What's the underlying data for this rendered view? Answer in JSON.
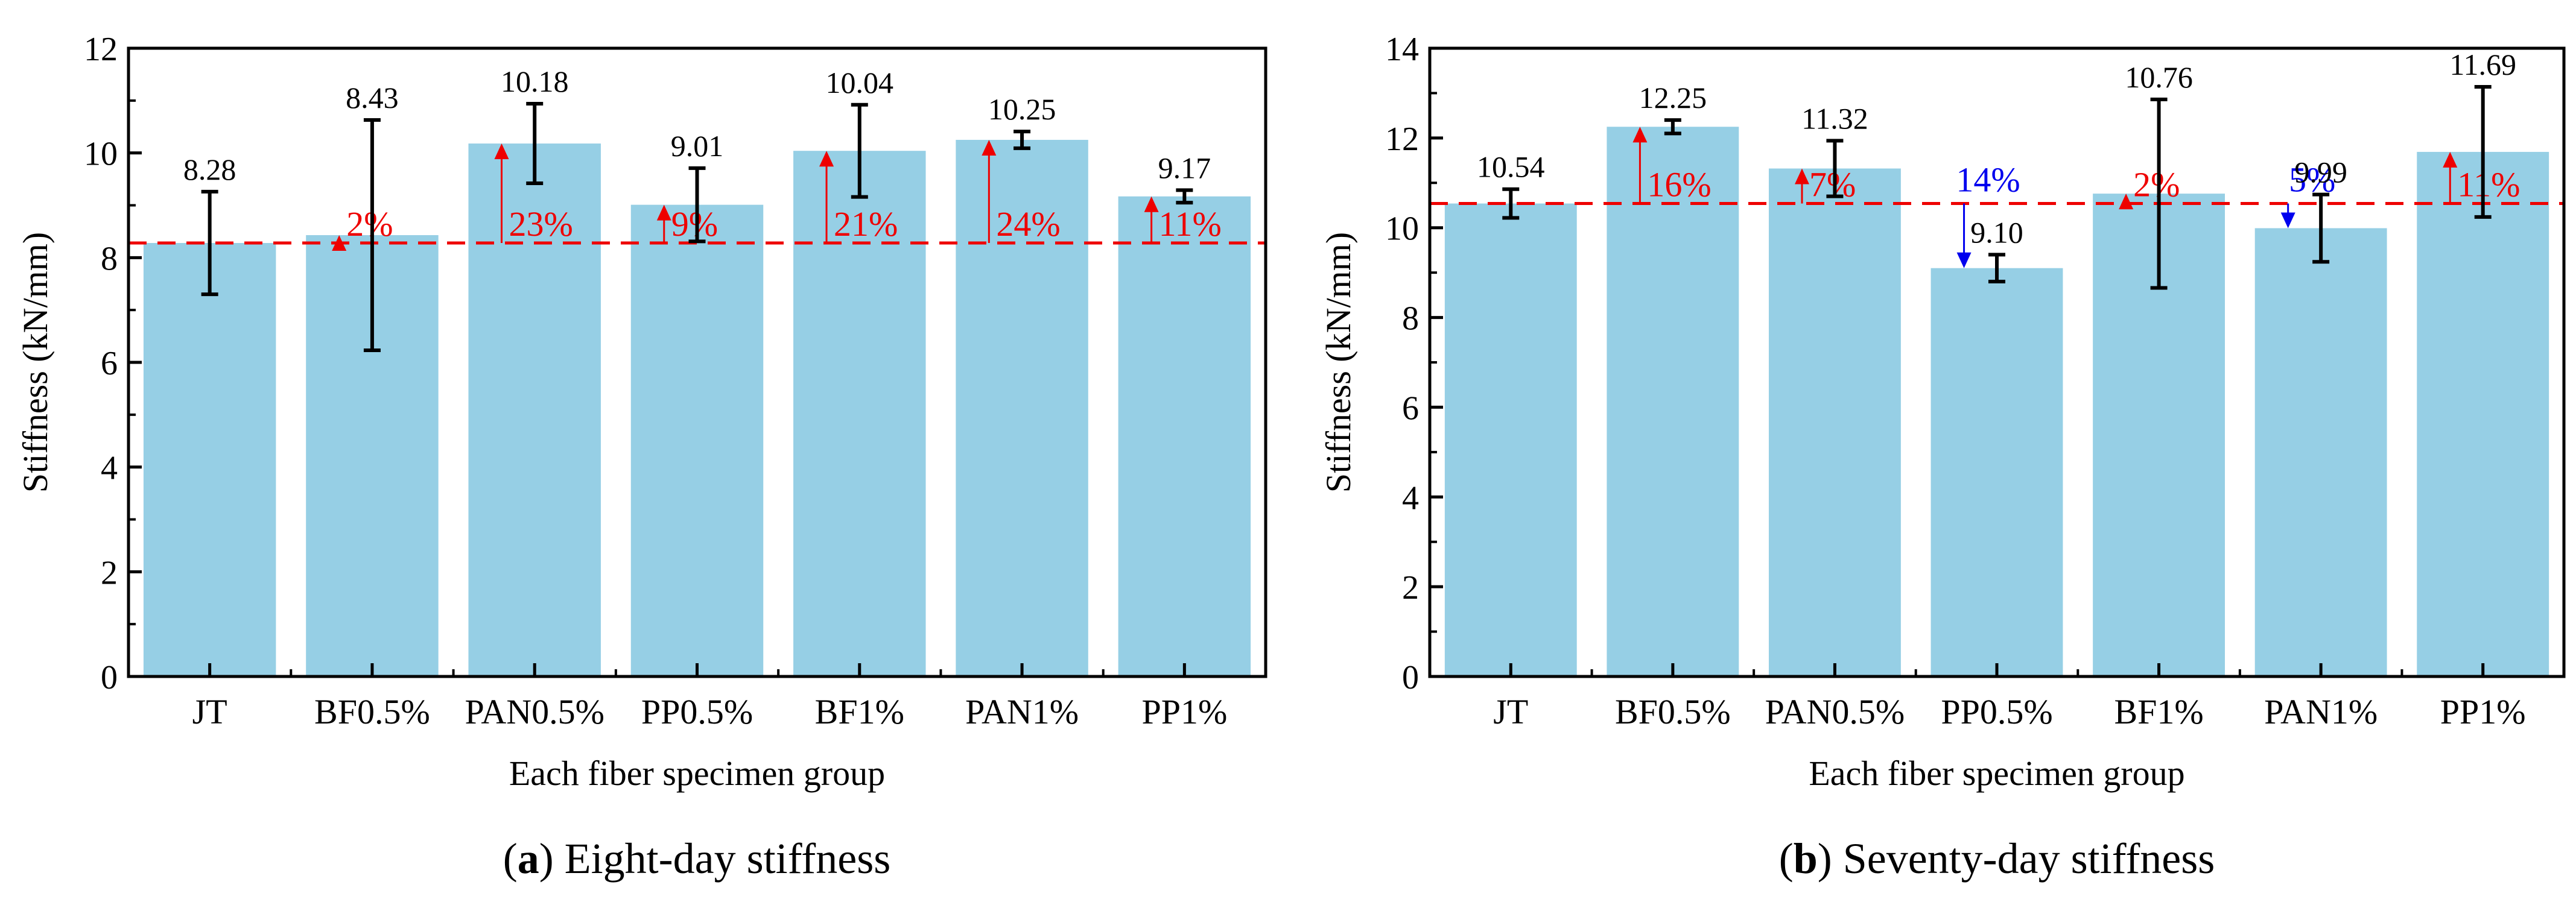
{
  "colors": {
    "bar": "#96cfe5",
    "error_bar": "#000000",
    "increase": "#ee0000",
    "decrease": "#0000ee",
    "reference_line": "#ee0000"
  },
  "chart_data": [
    {
      "type": "bar",
      "caption_letter": "a",
      "caption_text": " Eight-day stiffness",
      "xlabel": "Each fiber specimen group",
      "ylabel": "Stiffness (kN/mm)",
      "ylim": [
        0,
        12
      ],
      "yticks": [
        0,
        2,
        4,
        6,
        8,
        10,
        12
      ],
      "ytick_labels": [
        "0",
        "2",
        "4",
        "6",
        "8",
        "10",
        "12"
      ],
      "categories": [
        "JT",
        "BF0.5%",
        "PAN0.5%",
        "PP0.5%",
        "BF1%",
        "PAN1%",
        "PP1%"
      ],
      "values": [
        8.28,
        8.43,
        10.18,
        9.01,
        10.04,
        10.25,
        9.17
      ],
      "value_labels": [
        "8.28",
        "8.43",
        "10.18",
        "9.01",
        "10.04",
        "10.25",
        "9.17"
      ],
      "error": [
        0.98,
        2.2,
        0.76,
        0.7,
        0.88,
        0.16,
        0.12
      ],
      "baseline": 8.28,
      "changes": [
        null,
        "2%",
        "23%",
        "9%",
        "21%",
        "24%",
        "11%"
      ],
      "change_direction": [
        null,
        "up",
        "up",
        "up",
        "up",
        "up",
        "up"
      ]
    },
    {
      "type": "bar",
      "caption_letter": "b",
      "caption_text": " Seventy-day stiffness",
      "xlabel": "Each fiber specimen group",
      "ylabel": "Stiffness (kN/mm)",
      "ylim": [
        0,
        14
      ],
      "yticks": [
        0,
        2,
        4,
        6,
        8,
        10,
        12,
        14
      ],
      "ytick_labels": [
        "0",
        "2",
        "4",
        "6",
        "8",
        "10",
        "12",
        "14"
      ],
      "categories": [
        "JT",
        "BF0.5%",
        "PAN0.5%",
        "PP0.5%",
        "BF1%",
        "PAN1%",
        "PP1%"
      ],
      "values": [
        10.54,
        12.25,
        11.32,
        9.1,
        10.76,
        9.99,
        11.69
      ],
      "value_labels": [
        "10.54",
        "12.25",
        "11.32",
        "9.10",
        "10.76",
        "9.99",
        "11.69"
      ],
      "error": [
        0.32,
        0.15,
        0.62,
        0.3,
        2.1,
        0.75,
        1.45
      ],
      "baseline": 10.54,
      "changes": [
        null,
        "16%",
        "7%",
        "14%",
        "2%",
        "5%",
        "11%"
      ],
      "change_direction": [
        null,
        "up",
        "up",
        "down",
        "up",
        "down",
        "up"
      ]
    }
  ]
}
